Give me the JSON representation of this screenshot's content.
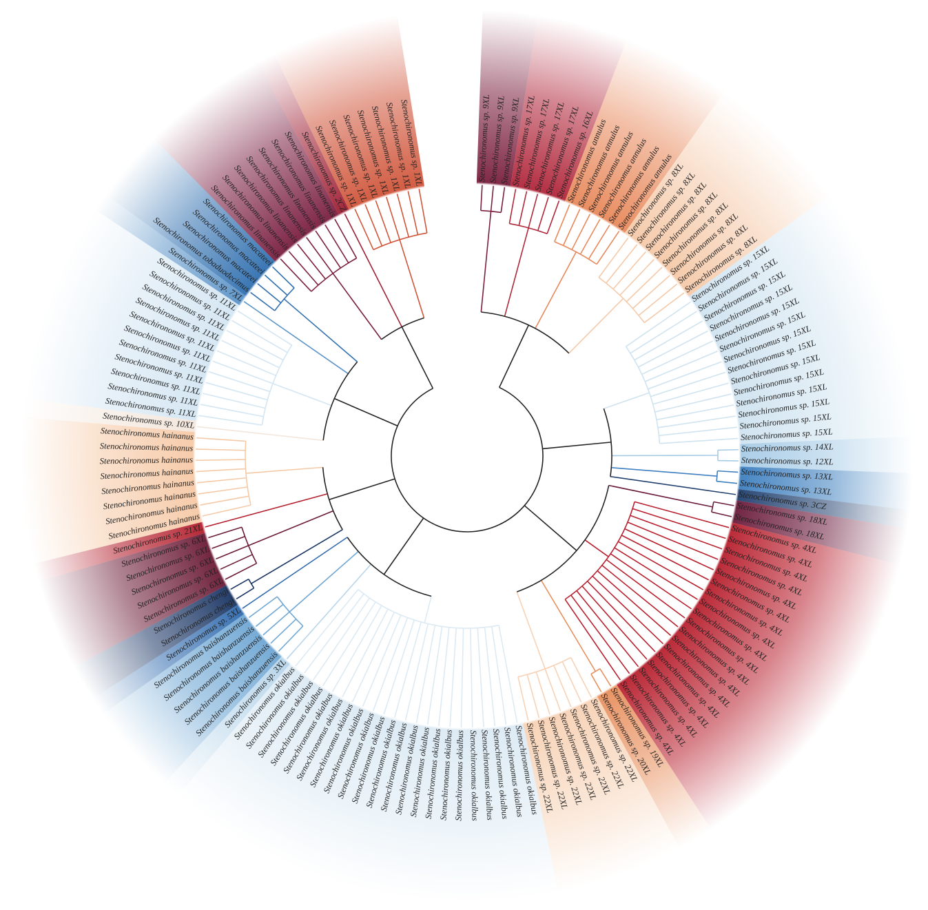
{
  "tree": {
    "clades": [
      {
        "color": "#7a1f3d",
        "leaves": [
          "Stenochironomus sp. 9XL",
          "Stenochironomus sp. 9XL",
          "Stenochironomus sp. 9XL"
        ]
      },
      {
        "color": "#b0263a",
        "leaves": [
          "Stenochironomus sp. 17XL",
          "Stenochironomus sp. 17XL",
          "Stenochironomus sp. 17XL",
          "Stenochironomus sp. 17XL",
          "Stenochironomus sp. 16XL"
        ]
      },
      {
        "color": "#e8885a",
        "leaves": [
          "Stenochironomus annulus",
          "Stenochironomus annulus",
          "Stenochironomus annulus",
          "Stenochironomus annulus",
          "Stenochironomus annulus",
          "Stenochironomus annulus"
        ]
      },
      {
        "color": "#f5c9a8",
        "leaves": [
          "Stenochironomus sp. 8XL",
          "Stenochironomus sp. 8XL",
          "Stenochironomus sp. 8XL",
          "Stenochironomus sp. 8XL",
          "Stenochironomus sp. 8XL",
          "Stenochironomus sp. 8XL",
          "Stenochironomus sp. 8XL",
          "Stenochironomus sp. 8XL"
        ]
      },
      {
        "color": "#cfe3f0",
        "leaves": [
          "Stenochironomus sp. 15XL",
          "Stenochironomus sp. 15XL",
          "Stenochironomus sp. 15XL",
          "Stenochironomus sp. 15XL",
          "Stenochironomus sp. 15XL",
          "Stenochironomus sp. 15XL",
          "Stenochironomus sp. 15XL",
          "Stenochironomus sp. 15XL",
          "Stenochironomus sp. 15XL",
          "Stenochironomus sp. 15XL",
          "Stenochironomus sp. 15XL",
          "Stenochironomus sp. 15XL",
          "Stenochironomus sp. 15XL",
          "Stenochironomus sp. 15XL"
        ]
      },
      {
        "color": "#a6cbe6",
        "leaves": [
          "Stenochironomus sp. 14XL",
          "Stenochironomus sp. 12XL"
        ]
      },
      {
        "color": "#3d7fbf",
        "leaves": [
          "Stenochironomus sp. 13XL",
          "Stenochironomus sp. 13XL"
        ]
      },
      {
        "color": "#1f3f6e",
        "leaves": [
          "Stenochironomus sp. 3CZ"
        ]
      },
      {
        "color": "#6a1a3a",
        "leaves": [
          "Stenochironomus sp. 18XL",
          "Stenochironomus sp. 18XL"
        ]
      },
      {
        "color": "#b8202e",
        "leaves": [
          "Stenochironomus sp. 4XL",
          "Stenochironomus sp. 4XL",
          "Stenochironomus sp. 4XL",
          "Stenochironomus sp. 4XL",
          "Stenochironomus sp. 4XL",
          "Stenochironomus sp. 4XL",
          "Stenochironomus sp. 4XL",
          "Stenochironomus sp. 4XL",
          "Stenochironomus sp. 4XL",
          "Stenochironomus sp. 4XL",
          "Stenochironomus sp. 4XL",
          "Stenochironomus sp. 4XL",
          "Stenochironomus sp. 4XL",
          "Stenochironomus sp. 4XL",
          "Stenochironomus sp. 4XL",
          "Stenochironomus sp. 4XL",
          "Stenochironomus sp. 4XL",
          "Stenochironomus sp. 4XL"
        ]
      },
      {
        "color": "#e8905e",
        "leaves": [
          "Stenochironomus sp. 19XL",
          "Stenochironomus sp. 20XL"
        ]
      },
      {
        "color": "#f7d2b5",
        "leaves": [
          "Stenochironomus sp. 22XL",
          "Stenochironomus sp. 22XL",
          "Stenochironomus sp. 22XL",
          "Stenochironomus sp. 22XL",
          "Stenochironomus sp. 22XL",
          "Stenochironomus sp. 22XL",
          "Stenochironomus sp. 22XL"
        ]
      },
      {
        "color": "#dceaf4",
        "leaves": [
          "Stenochironomus okialbus",
          "Stenochironomus okialbus",
          "Stenochironomus okialbus",
          "Stenochironomus okialbus",
          "Stenochironomus okialbus",
          "Stenochironomus okialbus",
          "Stenochironomus okialbus",
          "Stenochironomus okialbus",
          "Stenochironomus okialbus",
          "Stenochironomus okialbus",
          "Stenochironomus okialbus",
          "Stenochironomus okialbus",
          "Stenochironomus okialbus",
          "Stenochironomus okialbus",
          "Stenochironomus okialbus",
          "Stenochironomus okialbus",
          "Stenochironomus okialbus",
          "Stenochironomus okialbus",
          "Stenochironomus okialbus",
          "Stenochironomus okialbus",
          "Stenochironomus okialbus",
          "Stenochironomus okialbus"
        ]
      },
      {
        "color": "#b7d5ea",
        "leaves": [
          "Stenochironomus sp. 3XL"
        ]
      },
      {
        "color": "#6fa7d4",
        "leaves": [
          "Stenochironomus baishanzuensis",
          "Stenochironomus baishanzuensis",
          "Stenochironomus baishanzuensis",
          "Stenochironomus baishanzuensis",
          "Stenochironomus baishanzuensis"
        ]
      },
      {
        "color": "#2f6aae",
        "leaves": [
          "Stenochironomus sp. 5XL"
        ]
      },
      {
        "color": "#1a3564",
        "leaves": [
          "Stenochironomus chengi",
          "Stenochironomus chengi"
        ]
      },
      {
        "color": "#6b1b36",
        "leaves": [
          "Stenochironomus sp. 6XL",
          "Stenochironomus sp. 6XL",
          "Stenochironomus sp. 6XL",
          "Stenochironomus sp. 6XL",
          "Stenochironomus sp. 6XL"
        ]
      },
      {
        "color": "#b31e2c",
        "leaves": [
          "Stenochironomus sp. 21XL"
        ]
      },
      {
        "color": "#f6c9a6",
        "leaves": [
          "Stenochironomus hainanus",
          "Stenochironomus hainanus",
          "Stenochironomus hainanus",
          "Stenochironomus hainanus",
          "Stenochironomus hainanus",
          "Stenochironomus hainanus",
          "Stenochironomus hainanus",
          "Stenochironomus hainanus"
        ]
      },
      {
        "color": "#f3e6dc",
        "leaves": [
          "Stenochironomus sp. 10XL"
        ]
      },
      {
        "color": "#d4e6f3",
        "leaves": [
          "Stenochironomus sp. 11XL",
          "Stenochironomus sp. 11XL",
          "Stenochironomus sp. 11XL",
          "Stenochironomus sp. 11XL",
          "Stenochironomus sp. 11XL",
          "Stenochironomus sp. 11XL",
          "Stenochironomus sp. 11XL",
          "Stenochironomus sp. 11XL",
          "Stenochironomus sp. 11XL",
          "Stenochironomus sp. 11XL",
          "Stenochironomus sp. 11XL"
        ]
      },
      {
        "color": "#5a93c8",
        "leaves": [
          "Stenochironomus sp. 7XL"
        ]
      },
      {
        "color": "#3170b0",
        "leaves": [
          "Stenochironomus tobaduodecimus",
          "Stenochironomus macateei",
          "Stenochironomus macateei",
          "Stenochironomus macateei"
        ]
      },
      {
        "color": "#7a1e40",
        "leaves": [
          "Stenochironomus linanensis",
          "Stenochironomus linanensis",
          "Stenochironomus linanensis",
          "Stenochironomus linanensis",
          "Stenochironomus linanensis",
          "Stenochironomus linanensis",
          "Stenochironomus linanensis"
        ]
      },
      {
        "color": "#9e1f33",
        "leaves": [
          "Stenochironomus sp. 2CZ"
        ]
      },
      {
        "color": "#d0553a",
        "leaves": [
          "Stenochironomus sp. 1XL",
          "Stenochironomus sp. 1XL",
          "Stenochironomus sp. 1XL",
          "Stenochironomus sp. 1XL",
          "Stenochironomus sp. 1XL",
          "Stenochironomus sp. 1XL",
          "Stenochironomus sp. 1XL"
        ]
      }
    ]
  }
}
